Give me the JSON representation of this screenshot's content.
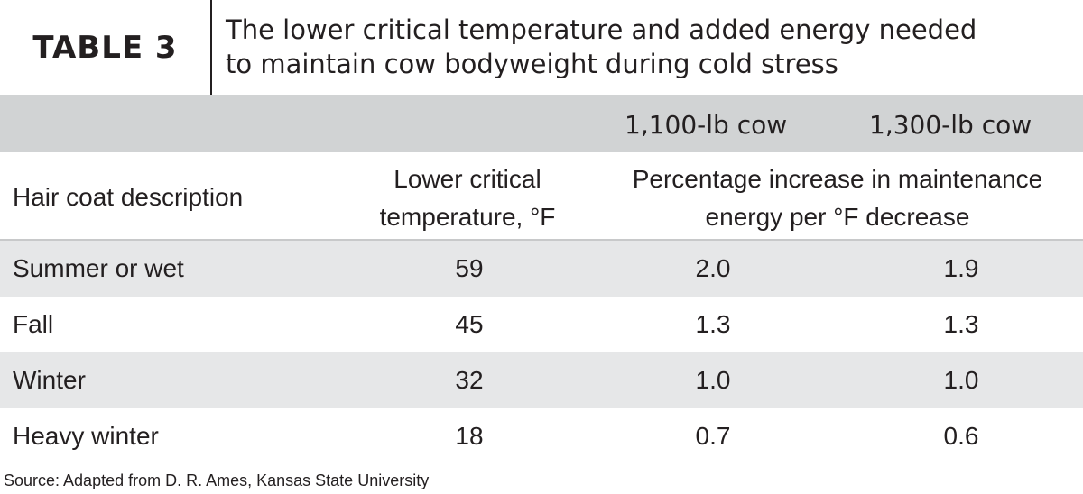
{
  "header": {
    "table_label": "TABLE 3",
    "title_line1": "The lower critical temperature and added energy needed",
    "title_line2": "to maintain cow bodyweight during cold stress"
  },
  "weights": {
    "col1": "1,100-lb cow",
    "col2": "1,300-lb cow"
  },
  "columns": {
    "hair_coat": "Hair coat description",
    "lct_line1": "Lower critical",
    "lct_line2": "temperature, °F",
    "pct_line1": "Percentage increase in maintenance",
    "pct_line2": "energy per °F decrease"
  },
  "rows": [
    {
      "description": "Summer or wet",
      "lct": "59",
      "cow1100": "2.0",
      "cow1300": "1.9"
    },
    {
      "description": "Fall",
      "lct": "45",
      "cow1100": "1.3",
      "cow1300": "1.3"
    },
    {
      "description": "Winter",
      "lct": "32",
      "cow1100": "1.0",
      "cow1300": "1.0"
    },
    {
      "description": "Heavy winter",
      "lct": "18",
      "cow1100": "0.7",
      "cow1300": "0.6"
    }
  ],
  "source": "Source: Adapted from D. R. Ames, Kansas State University",
  "colors": {
    "header_band": "#d1d3d4",
    "row_shade": "#e6e7e8",
    "text": "#231f20"
  }
}
